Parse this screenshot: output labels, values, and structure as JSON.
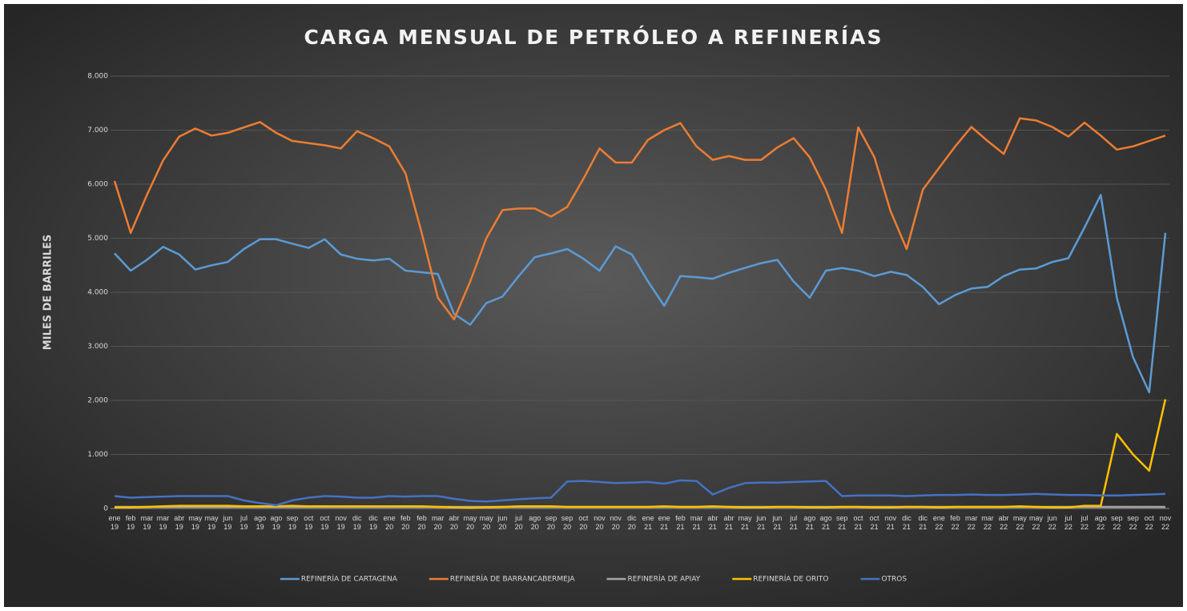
{
  "chart_data": {
    "type": "line",
    "title": "CARGA MENSUAL DE PETRÓLEO A REFINERÍAS",
    "y_label": "MILES DE BARRILES",
    "categories": [
      "ene 19",
      "feb 19",
      "mar 19",
      "mar 19",
      "abr 19",
      "may 19",
      "may 19",
      "jun 19",
      "jul 19",
      "ago 19",
      "ago 19",
      "sep 19",
      "oct 19",
      "oct 19",
      "nov 19",
      "dic 19",
      "dic 19",
      "ene 20",
      "feb 20",
      "feb 20",
      "mar 20",
      "abr 20",
      "may 20",
      "may 20",
      "jun 20",
      "jul 20",
      "ago 20",
      "sep 20",
      "sep 20",
      "oct 20",
      "nov 20",
      "nov 20",
      "dic 20",
      "ene 21",
      "ene 21",
      "feb 21",
      "mar 21",
      "abr 21",
      "abr 21",
      "may 21",
      "jun 21",
      "jun 21",
      "jul 21",
      "ago 21",
      "ago 21",
      "sep 21",
      "oct 21",
      "oct 21",
      "nov 21",
      "dic 21",
      "dic 21",
      "ene 22",
      "feb 22",
      "mar 22",
      "mar 22",
      "abr 22",
      "may 22",
      "may 22",
      "jun 22",
      "jul 22",
      "jul 22",
      "ago 22",
      "sep 22",
      "sep 22",
      "oct 22",
      "nov 22"
    ],
    "series": [
      {
        "name": "REFINERÍA DE CARTAGENA",
        "color": "#5b9bd5",
        "values": [
          4720,
          4400,
          4600,
          4840,
          4700,
          4420,
          4500,
          4560,
          4800,
          4980,
          4980,
          4900,
          4820,
          4980,
          4700,
          4620,
          4590,
          4620,
          4400,
          4370,
          4340,
          3600,
          3400,
          3800,
          3920,
          4300,
          4650,
          4720,
          4800,
          4620,
          4400,
          4850,
          4700,
          4200,
          3750,
          4300,
          4280,
          4250,
          4360,
          4450,
          4540,
          4600,
          4200,
          3900,
          4400,
          4450,
          4400,
          4300,
          4380,
          4320,
          4100,
          3780,
          3950,
          4070,
          4100,
          4300,
          4420,
          4440,
          4560,
          4630,
          5200,
          5800,
          3900,
          2800,
          2150,
          5100
        ]
      },
      {
        "name": "REFINERÍA DE BARRANCABERMEJA",
        "color": "#ed7d31",
        "values": [
          6060,
          5100,
          5800,
          6440,
          6880,
          7030,
          6900,
          6950,
          7050,
          7150,
          6950,
          6800,
          6760,
          6720,
          6660,
          6980,
          6850,
          6700,
          6200,
          5100,
          3900,
          3500,
          4200,
          5000,
          5520,
          5550,
          5550,
          5400,
          5580,
          6100,
          6660,
          6400,
          6400,
          6820,
          7000,
          7130,
          6700,
          6450,
          6520,
          6450,
          6450,
          6680,
          6850,
          6500,
          5900,
          5100,
          7050,
          6500,
          5500,
          4800,
          5900,
          6300,
          6700,
          7060,
          6800,
          6560,
          7220,
          7180,
          7060,
          6880,
          7140,
          6900,
          6640,
          6700,
          6800,
          6900
        ]
      },
      {
        "name": "REFINERÍA DE APIAY",
        "color": "#a5a5a5",
        "values": [
          30,
          30,
          30,
          30,
          30,
          30,
          30,
          30,
          30,
          30,
          30,
          30,
          30,
          30,
          30,
          30,
          30,
          30,
          30,
          30,
          30,
          30,
          30,
          30,
          30,
          30,
          30,
          30,
          30,
          30,
          30,
          30,
          30,
          30,
          30,
          30,
          30,
          30,
          30,
          30,
          30,
          30,
          30,
          30,
          30,
          30,
          30,
          30,
          30,
          30,
          30,
          30,
          30,
          30,
          30,
          30,
          30,
          30,
          30,
          30,
          30,
          30,
          30,
          30,
          30,
          30
        ]
      },
      {
        "name": "REFINERÍA DE ORITO",
        "color": "#ffc000",
        "values": [
          20,
          20,
          30,
          40,
          50,
          50,
          50,
          50,
          40,
          40,
          40,
          50,
          40,
          40,
          40,
          40,
          40,
          40,
          40,
          40,
          30,
          20,
          10,
          20,
          30,
          40,
          40,
          40,
          30,
          30,
          30,
          30,
          30,
          30,
          40,
          30,
          30,
          40,
          30,
          20,
          20,
          30,
          30,
          20,
          20,
          30,
          30,
          20,
          20,
          30,
          30,
          20,
          30,
          30,
          30,
          30,
          40,
          30,
          20,
          20,
          50,
          50,
          1380,
          1000,
          700,
          2020
        ]
      },
      {
        "name": "OTROS",
        "color": "#4472c4",
        "values": [
          230,
          200,
          210,
          220,
          230,
          230,
          230,
          230,
          150,
          100,
          60,
          150,
          200,
          230,
          220,
          200,
          200,
          230,
          220,
          230,
          230,
          180,
          140,
          130,
          150,
          170,
          190,
          200,
          500,
          510,
          490,
          470,
          480,
          490,
          460,
          520,
          510,
          260,
          380,
          470,
          480,
          480,
          490,
          500,
          510,
          230,
          240,
          240,
          240,
          230,
          240,
          250,
          250,
          260,
          250,
          250,
          260,
          270,
          260,
          250,
          250,
          240,
          240,
          250,
          260,
          270
        ]
      }
    ],
    "ylim": [
      0,
      8000
    ],
    "yticks": [
      0,
      {
        "value": 1000,
        "label": "1.000"
      },
      {
        "value": 2000,
        "label": "2.000"
      },
      {
        "value": 3000,
        "label": "3.000"
      },
      {
        "value": 4000,
        "label": "4.000"
      },
      {
        "value": 5000,
        "label": "5.000"
      },
      {
        "value": 6000,
        "label": "6.000"
      },
      {
        "value": 7000,
        "label": "7.000"
      },
      {
        "value": 8000,
        "label": "8.000"
      }
    ],
    "grid": true,
    "legend": "bottom"
  }
}
